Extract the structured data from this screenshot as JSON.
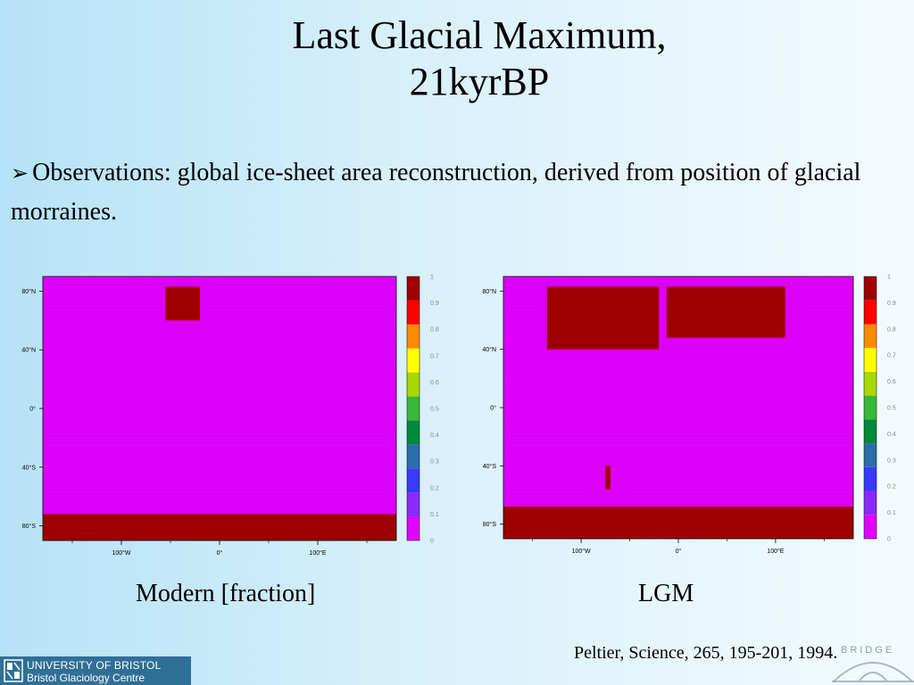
{
  "slide": {
    "title_line1": "Last Glacial Maximum,",
    "title_line2": "21kyrBP",
    "bullet_text": "Observations: global ice-sheet area reconstruction, derived from position of glacial morraines.",
    "citation": "Peltier, Science, 265, 195-201, 1994.",
    "logo_line1": "UNIVERSITY OF BRISTOL",
    "logo_line2": "Bristol Glaciology Centre",
    "bridge_logo_text": "BRIDGE"
  },
  "colors": {
    "background_left": "#b6e2f7",
    "background_right": "#f4fbfe",
    "fraction_0": "#e100ff",
    "fraction_1": "#a00000",
    "logo_bar": "#2f6f96"
  },
  "chart_data": [
    {
      "type": "heatmap",
      "title": "Modern [fraction]",
      "xlabel": "",
      "ylabel": "",
      "x_ticks": [
        "100°W",
        "0°",
        "100°E"
      ],
      "x_tick_values": [
        -100,
        0,
        100
      ],
      "y_ticks": [
        "80°N",
        "40°N",
        "0°",
        "40°S",
        "80°S"
      ],
      "y_tick_values": [
        80,
        40,
        0,
        -40,
        -80
      ],
      "xlim": [
        -180,
        180
      ],
      "ylim": [
        -90,
        90
      ],
      "value_range": [
        0,
        1
      ],
      "colorbar": {
        "ticks": [
          "1",
          "0.9",
          "0.8",
          "0.7",
          "0.6",
          "0.5",
          "0.4",
          "0.3",
          "0.2",
          "0.1",
          "0"
        ],
        "colors": [
          "#a00000",
          "#ff0000",
          "#ff8a00",
          "#ffff00",
          "#a8d800",
          "#3ab83a",
          "#008a3a",
          "#2a6eaa",
          "#3a3aff",
          "#8a2aff",
          "#e100ff"
        ]
      },
      "background_value": 0,
      "ice_regions": [
        {
          "name": "Antarctica",
          "value": 1,
          "lon": [
            -180,
            180
          ],
          "lat": [
            -90,
            -72
          ]
        },
        {
          "name": "Greenland",
          "value": 1,
          "lon": [
            -55,
            -20
          ],
          "lat": [
            60,
            83
          ]
        }
      ]
    },
    {
      "type": "heatmap",
      "title": "LGM",
      "xlabel": "",
      "ylabel": "",
      "x_ticks": [
        "100°W",
        "0°",
        "100°E"
      ],
      "x_tick_values": [
        -100,
        0,
        100
      ],
      "y_ticks": [
        "80°N",
        "40°N",
        "0°",
        "40°S",
        "80°S"
      ],
      "y_tick_values": [
        80,
        40,
        0,
        -40,
        -80
      ],
      "xlim": [
        -180,
        180
      ],
      "ylim": [
        -90,
        90
      ],
      "value_range": [
        0,
        1
      ],
      "colorbar": {
        "ticks": [
          "1",
          "0.9",
          "0.8",
          "0.7",
          "0.6",
          "0.5",
          "0.4",
          "0.3",
          "0.2",
          "0.1",
          "0"
        ],
        "colors": [
          "#a00000",
          "#ff0000",
          "#ff8a00",
          "#ffff00",
          "#a8d800",
          "#3ab83a",
          "#008a3a",
          "#2a6eaa",
          "#3a3aff",
          "#8a2aff",
          "#e100ff"
        ]
      },
      "background_value": 0,
      "ice_regions": [
        {
          "name": "Antarctica",
          "value": 1,
          "lon": [
            -180,
            180
          ],
          "lat": [
            -90,
            -68
          ]
        },
        {
          "name": "Laurentide and Greenland",
          "value": 1,
          "lon": [
            -135,
            -20
          ],
          "lat": [
            40,
            83
          ]
        },
        {
          "name": "Eurasian",
          "value": 1,
          "lon": [
            -12,
            110
          ],
          "lat": [
            48,
            83
          ]
        },
        {
          "name": "Patagonia",
          "value": 1,
          "lon": [
            -75,
            -70
          ],
          "lat": [
            -56,
            -40
          ]
        }
      ]
    }
  ]
}
